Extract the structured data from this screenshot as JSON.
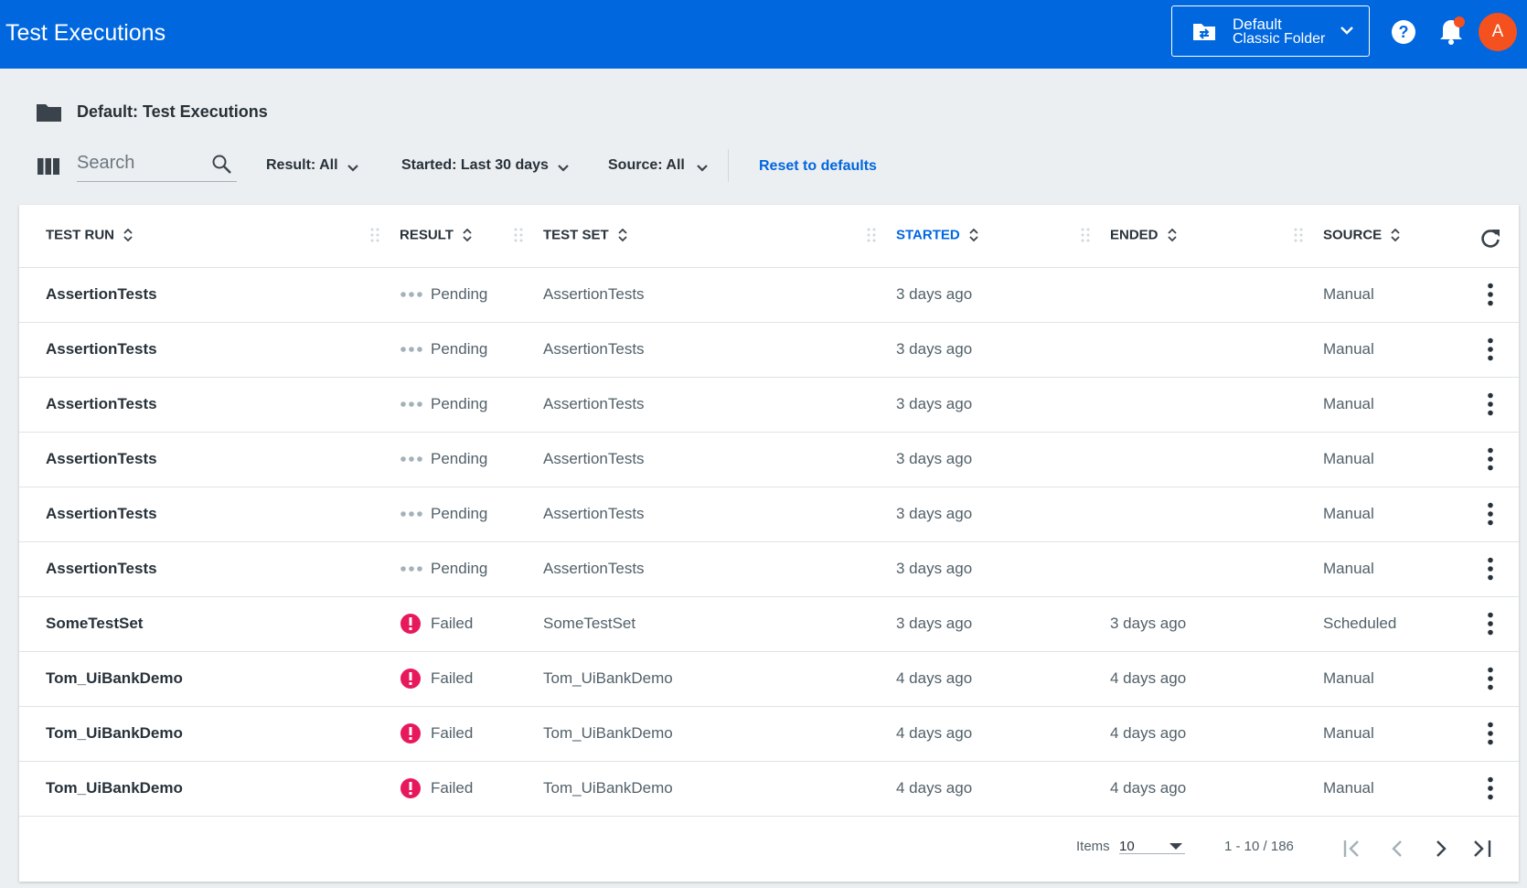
{
  "header": {
    "title": "Test Executions",
    "folder_name": "Default",
    "folder_type": "Classic Folder",
    "avatar": "A"
  },
  "breadcrumb": "Default: Test Executions",
  "toolbar": {
    "search_placeholder": "Search",
    "filters": [
      "Result: All",
      "Started: Last 30 days",
      "Source: All"
    ],
    "reset": "Reset to defaults"
  },
  "table": {
    "columns": [
      "TEST RUN",
      "RESULT",
      "TEST SET",
      "STARTED",
      "ENDED",
      "SOURCE"
    ],
    "rows": [
      [
        "AssertionTests",
        "Pending",
        "AssertionTests",
        "3 days ago",
        null,
        "Manual"
      ],
      [
        "AssertionTests",
        "Pending",
        "AssertionTests",
        "3 days ago",
        null,
        "Manual"
      ],
      [
        "AssertionTests",
        "Pending",
        "AssertionTests",
        "3 days ago",
        null,
        "Manual"
      ],
      [
        "AssertionTests",
        "Pending",
        "AssertionTests",
        "3 days ago",
        null,
        "Manual"
      ],
      [
        "AssertionTests",
        "Pending",
        "AssertionTests",
        "3 days ago",
        null,
        "Manual"
      ],
      [
        "AssertionTests",
        "Pending",
        "AssertionTests",
        "3 days ago",
        null,
        "Manual"
      ],
      [
        "SomeTestSet",
        "Failed",
        "SomeTestSet",
        "3 days ago",
        "3 days ago",
        "Scheduled"
      ],
      [
        "Tom_UiBankDemo",
        "Failed",
        "Tom_UiBankDemo",
        "4 days ago",
        "4 days ago",
        "Manual"
      ],
      [
        "Tom_UiBankDemo",
        "Failed",
        "Tom_UiBankDemo",
        "4 days ago",
        "4 days ago",
        "Manual"
      ],
      [
        "Tom_UiBankDemo",
        "Failed",
        "Tom_UiBankDemo",
        "4 days ago",
        "4 days ago",
        "Manual"
      ]
    ]
  },
  "footer": {
    "items_label": "Items",
    "items_value": "10",
    "range": "1 - 10 / 186"
  }
}
